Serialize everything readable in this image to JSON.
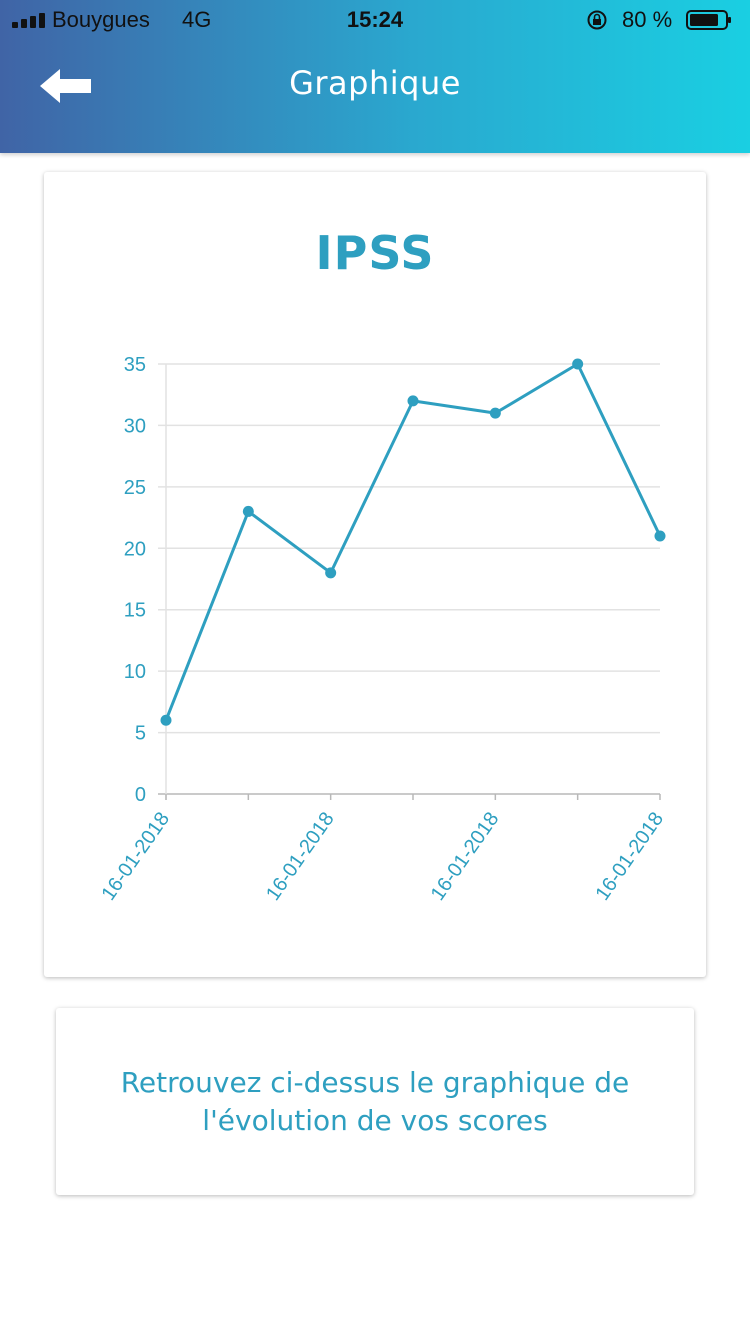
{
  "status_bar": {
    "carrier": "Bouygues",
    "network": "4G",
    "time": "15:24",
    "battery_percent": "80 %",
    "icons": [
      "signal-icon",
      "rotation-lock-icon",
      "battery-icon"
    ]
  },
  "header": {
    "title": "Graphique",
    "back_icon": "arrow-left-icon",
    "gradient_colors": [
      "#4064a6",
      "#1acfe2"
    ]
  },
  "chart_data": {
    "type": "line",
    "title": "IPSS",
    "x": [
      "16-01-2018",
      "",
      "16-01-2018",
      "",
      "16-01-2018",
      "",
      "16-01-2018"
    ],
    "x_tick_labels": [
      "16-01-2018",
      "16-01-2018",
      "16-01-2018",
      "16-01-2018"
    ],
    "series": [
      {
        "values": [
          6,
          23,
          18,
          32,
          31,
          35,
          21
        ]
      }
    ],
    "ylim": [
      0,
      35
    ],
    "yticks": [
      0,
      5,
      10,
      15,
      20,
      25,
      30,
      35
    ],
    "xlabel": "",
    "ylabel": "",
    "grid": true,
    "color": "#2e9fc0"
  },
  "info": {
    "text": "Retrouvez ci-dessus le graphique de l'évolution de vos scores"
  }
}
